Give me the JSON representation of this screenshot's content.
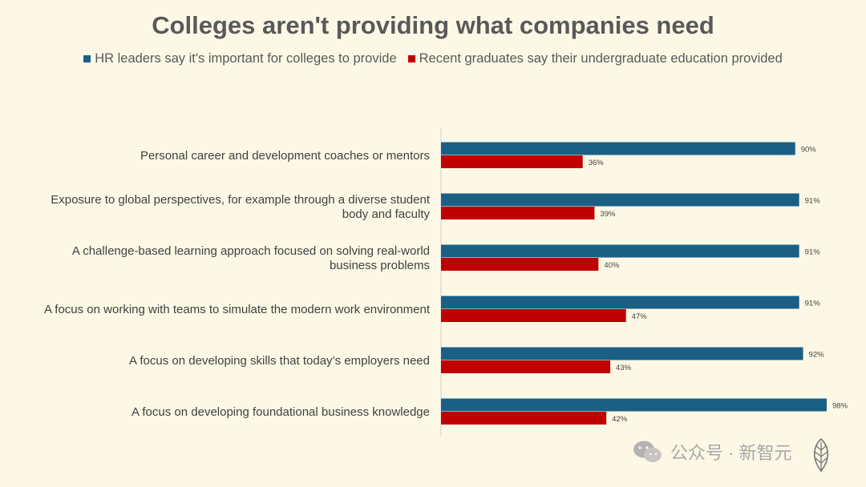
{
  "chart_data": {
    "type": "bar",
    "orientation": "horizontal",
    "title": "Colleges aren't providing what companies need",
    "categories": [
      "Personal career and development coaches or mentors",
      "Exposure to global perspectives, for example through a diverse student body and faculty",
      "A challenge-based learning approach focused on solving real-world business problems",
      "A focus on working with teams to simulate the modern work environment",
      "A focus on developing skills that today’s employers need",
      "A focus on developing foundational business knowledge"
    ],
    "series": [
      {
        "name": "HR leaders say it's important for colleges to provide",
        "color": "#1b5f85",
        "values": [
          90,
          91,
          91,
          91,
          92,
          98
        ],
        "labels": [
          "90%",
          "91%",
          "91%",
          "91%",
          "92%",
          "98%"
        ]
      },
      {
        "name": "Recent graduates say their undergraduate education provided",
        "color": "#c00000",
        "values": [
          36,
          39,
          40,
          47,
          43,
          42
        ],
        "labels": [
          "36%",
          "39%",
          "40%",
          "47%",
          "43%",
          "42%"
        ]
      }
    ],
    "xlim": [
      0,
      100
    ],
    "grid": false,
    "legend_position": "top"
  },
  "watermark": {
    "text": "公众号 · 新智元",
    "icon": "wechat-icon"
  }
}
